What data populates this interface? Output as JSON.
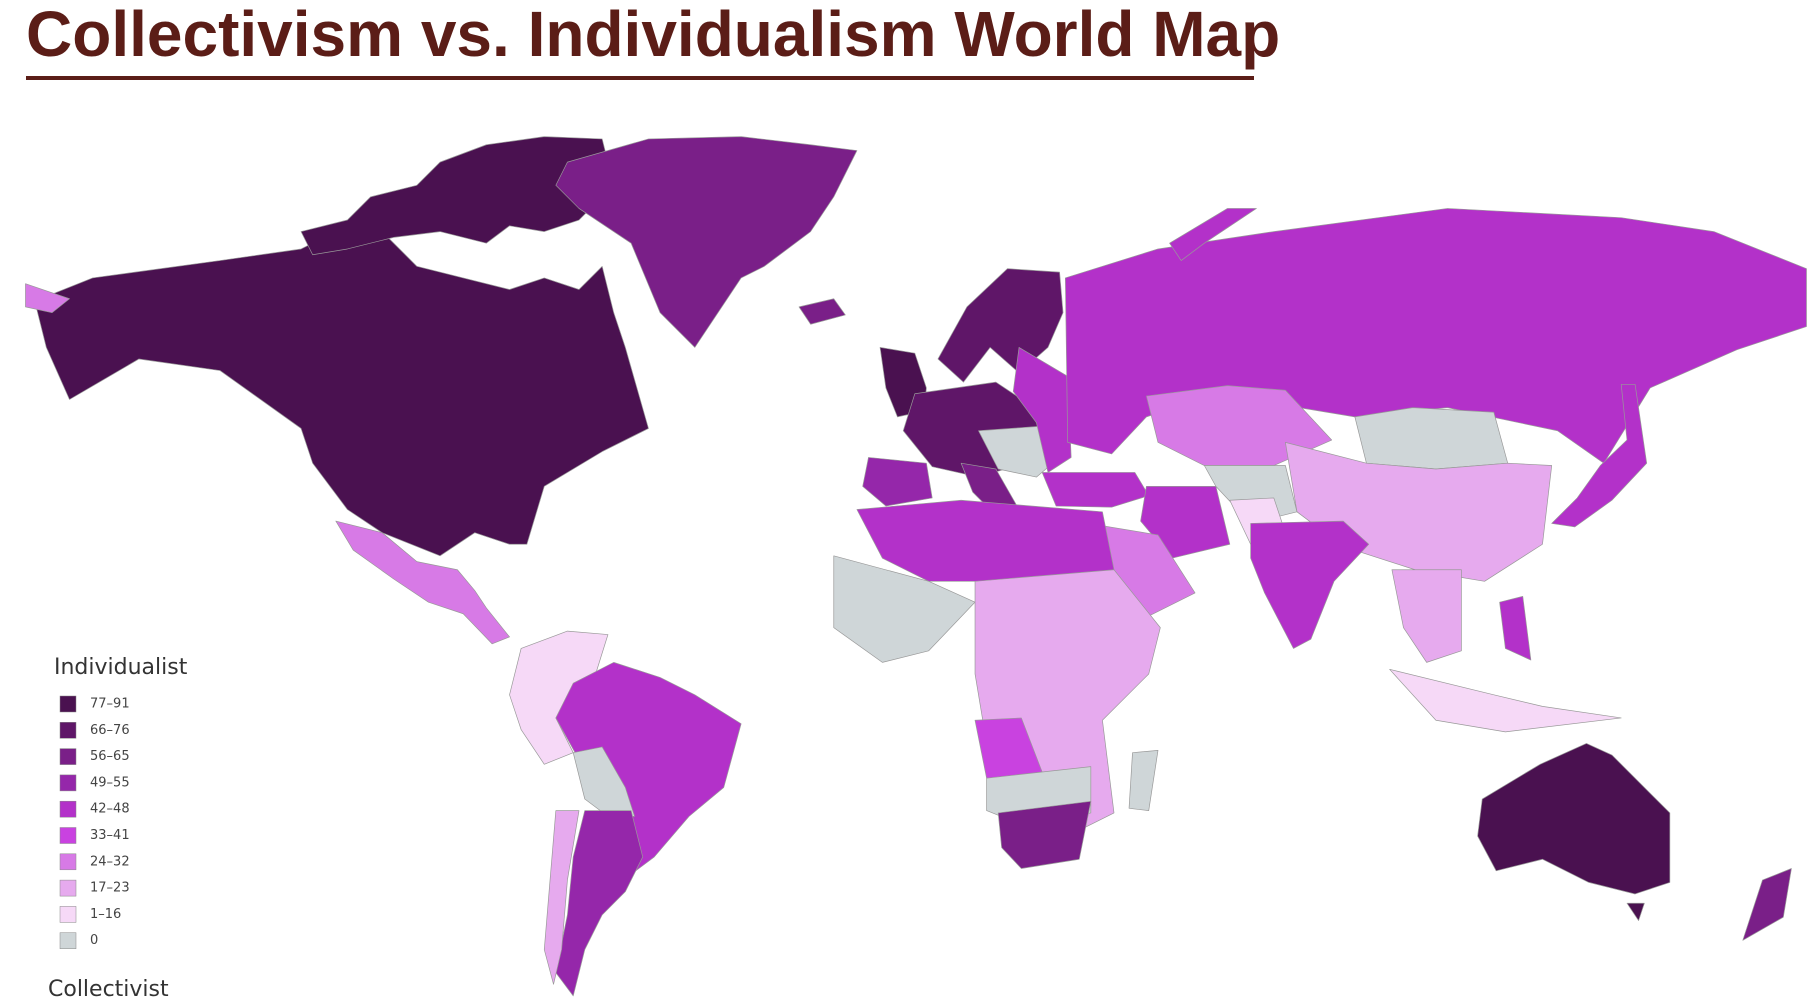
{
  "title": "Collectivism vs. Individualism World Map",
  "legend": {
    "top_label": "Individualist",
    "items": [
      {
        "label": "77–91",
        "color": "#4a1150"
      },
      {
        "label": "66–76",
        "color": "#5f1668"
      },
      {
        "label": "56–65",
        "color": "#7a1f88"
      },
      {
        "label": "49–55",
        "color": "#9527aa"
      },
      {
        "label": "42–48",
        "color": "#b331c9"
      },
      {
        "label": "33–41",
        "color": "#c942e0"
      },
      {
        "label": "24–32",
        "color": "#d77ae6"
      },
      {
        "label": "17–23",
        "color": "#e6aaee"
      },
      {
        "label": "1–16",
        "color": "#f6d9f7"
      },
      {
        "label": "0",
        "color": "#cfd6d8"
      }
    ],
    "bottom_label": "Collectivist"
  }
}
